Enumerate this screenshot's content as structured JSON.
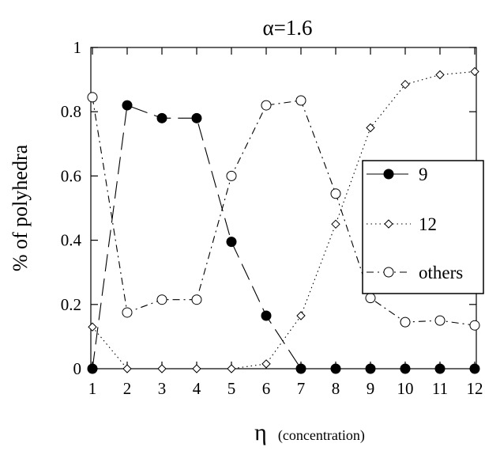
{
  "chart_data": {
    "type": "line",
    "title": "α=1.6",
    "ylabel": "% of polyhedra",
    "xlabel_symbol": "η",
    "xlabel_note": "(concentration)",
    "xlim": [
      1,
      12
    ],
    "ylim": [
      0,
      1
    ],
    "x_ticks": [
      "1",
      "2",
      "3",
      "4",
      "5",
      "6",
      "7",
      "8",
      "9",
      "10",
      "11",
      "12"
    ],
    "y_ticks": [
      "0",
      "0.2",
      "0.4",
      "0.6",
      "0.8",
      "1"
    ],
    "grid": false,
    "legend_position": "right",
    "x": [
      1,
      2,
      3,
      4,
      5,
      6,
      7,
      8,
      9,
      10,
      11,
      12
    ],
    "series": [
      {
        "name": "9",
        "marker": "filled-circle",
        "dash": "long-dash",
        "values": [
          0,
          0.82,
          0.78,
          0.78,
          0.395,
          0.165,
          0,
          0,
          0,
          0,
          0,
          0
        ]
      },
      {
        "name": "12",
        "marker": "open-diamond",
        "dash": "dotted",
        "values": [
          0.13,
          0,
          0,
          0,
          0,
          0.015,
          0.165,
          0.45,
          0.75,
          0.885,
          0.915,
          0.925
        ]
      },
      {
        "name": "others",
        "marker": "open-circle",
        "dash": "dash-dot",
        "values": [
          0.845,
          0.175,
          0.215,
          0.215,
          0.6,
          0.82,
          0.835,
          0.545,
          0.22,
          0.145,
          0.15,
          0.135
        ]
      }
    ]
  }
}
